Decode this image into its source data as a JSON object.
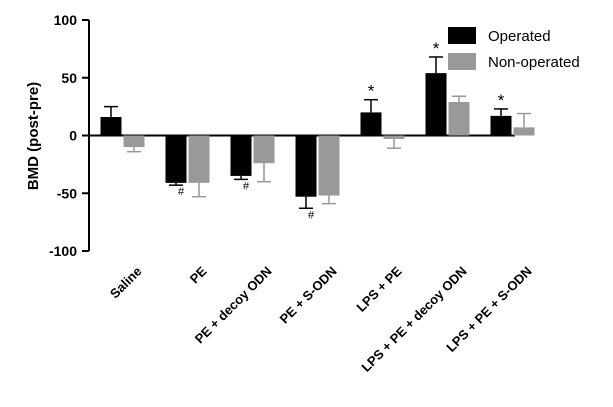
{
  "chart_data": {
    "type": "bar",
    "title": "",
    "xlabel": "",
    "ylabel": "BMD (post-pre)",
    "ylim": [
      -100,
      100
    ],
    "yticks": [
      100,
      50,
      0,
      -50,
      -100
    ],
    "grid": false,
    "legend_position": "top-right",
    "categories": [
      "Saline",
      "PE",
      "PE + decoy ODN",
      "PE + S-ODN",
      "LPS + PE",
      "LPS + PE + decoy ODN",
      "LPS + PE + S-ODN"
    ],
    "series": [
      {
        "name": "Operated",
        "color": "#000000",
        "values": [
          16,
          -41,
          -35,
          -53,
          20,
          54,
          17
        ],
        "errors": [
          9,
          2,
          3,
          10,
          11,
          14,
          6
        ],
        "annotations": [
          "",
          "#",
          "#",
          "#",
          "*",
          "*",
          "*"
        ]
      },
      {
        "name": "Non-operated",
        "color": "#999999",
        "values": [
          -10,
          -41,
          -24,
          -52,
          -3,
          29,
          7
        ],
        "errors": [
          4,
          12,
          16,
          7,
          8,
          5,
          12
        ],
        "annotations": [
          "",
          "",
          "",
          "",
          "",
          "",
          ""
        ]
      }
    ]
  }
}
